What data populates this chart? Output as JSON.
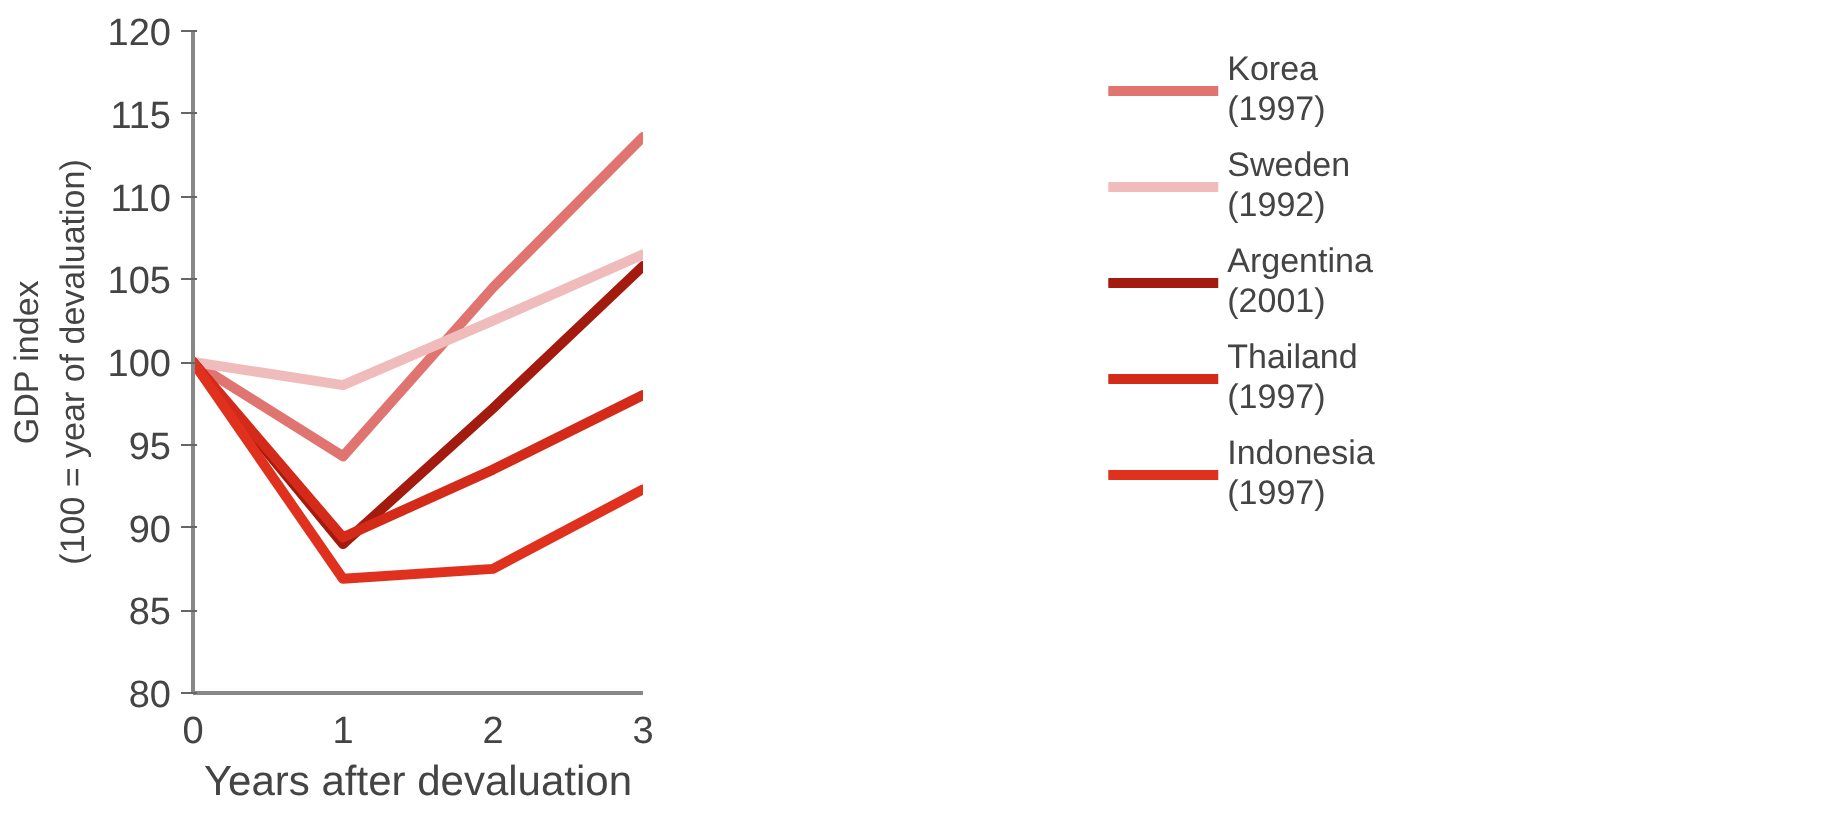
{
  "chart_data": {
    "type": "line",
    "xlabel": "Years after devaluation",
    "ylabel": "GDP index\n(100 = year of devaluation)",
    "x": [
      0,
      1,
      2,
      3
    ],
    "xlim": [
      0,
      3
    ],
    "xticks": [
      0,
      1,
      2,
      3
    ],
    "ylim": [
      80,
      120
    ],
    "yticks": [
      80,
      85,
      90,
      95,
      100,
      105,
      110,
      115,
      120
    ],
    "grid": false,
    "legend": "right",
    "line_style": "solid",
    "marker": "none",
    "series": [
      {
        "name": "Korea (1997)",
        "color": "#e07470",
        "values": [
          100,
          94.3,
          104.5,
          113.6
        ]
      },
      {
        "name": "Sweden (1992)",
        "color": "#efbcbb",
        "values": [
          100,
          98.6,
          102.5,
          106.5
        ]
      },
      {
        "name": "Argentina (2001)",
        "color": "#a31a0e",
        "values": [
          100,
          89,
          97.2,
          105.8
        ]
      },
      {
        "name": "Thailand (1997)",
        "color": "#d42a1a",
        "values": [
          100,
          89.4,
          93.5,
          98
        ]
      },
      {
        "name": "Indonesia (1997)",
        "color": "#e0301e",
        "values": [
          100,
          86.9,
          87.5,
          92.3
        ]
      }
    ]
  }
}
